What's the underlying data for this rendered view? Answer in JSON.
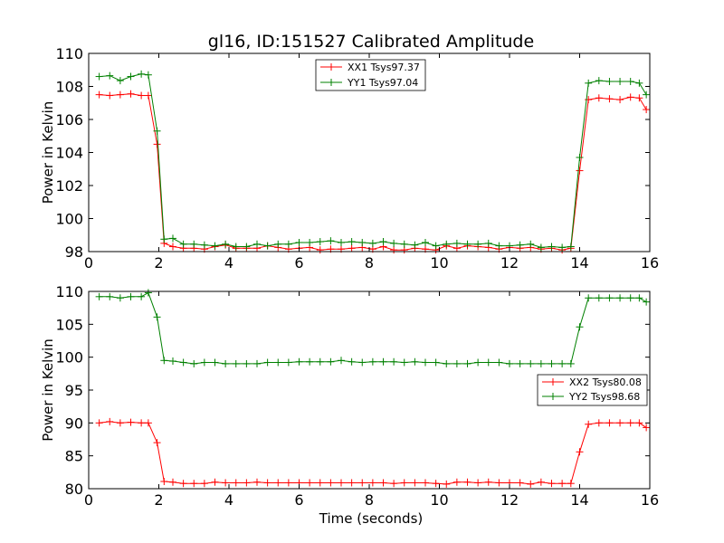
{
  "chart_data": {
    "type": "line",
    "title": "gl16, ID:151527 Calibrated Amplitude",
    "xlabel": "Time (seconds)",
    "colors": {
      "red": "#ff0000",
      "green": "#008000"
    },
    "panels": [
      {
        "ylabel": "Power in Kelvin",
        "xlim": [
          0,
          16
        ],
        "ylim": [
          98,
          110
        ],
        "xticks": [
          0,
          2,
          4,
          6,
          8,
          10,
          12,
          14,
          16
        ],
        "yticks": [
          98,
          100,
          102,
          104,
          106,
          108,
          110
        ],
        "legend_position": "top-center",
        "series": [
          {
            "name": "XX1 Tsys97.37",
            "color": "red",
            "x": [
              0.3,
              0.6,
              0.9,
              1.2,
              1.5,
              1.7,
              1.95,
              2.15,
              2.4,
              2.7,
              3.0,
              3.3,
              3.6,
              3.9,
              4.2,
              4.5,
              4.8,
              5.1,
              5.4,
              5.7,
              6.0,
              6.3,
              6.6,
              6.9,
              7.2,
              7.5,
              7.8,
              8.1,
              8.4,
              8.7,
              9.0,
              9.3,
              9.6,
              9.9,
              10.2,
              10.5,
              10.8,
              11.1,
              11.4,
              11.7,
              12.0,
              12.3,
              12.6,
              12.9,
              13.2,
              13.5,
              13.75,
              14.0,
              14.25,
              14.55,
              14.85,
              15.15,
              15.45,
              15.7,
              15.9
            ],
            "y": [
              107.5,
              107.45,
              107.5,
              107.55,
              107.45,
              107.45,
              104.5,
              98.5,
              98.3,
              98.2,
              98.2,
              98.15,
              98.3,
              98.4,
              98.2,
              98.2,
              98.2,
              98.35,
              98.25,
              98.15,
              98.2,
              98.25,
              98.1,
              98.15,
              98.15,
              98.2,
              98.25,
              98.15,
              98.3,
              98.1,
              98.1,
              98.2,
              98.15,
              98.1,
              98.35,
              98.2,
              98.35,
              98.3,
              98.25,
              98.15,
              98.25,
              98.2,
              98.25,
              98.15,
              98.2,
              98.1,
              98.2,
              102.9,
              107.2,
              107.3,
              107.25,
              107.2,
              107.35,
              107.3,
              106.6
            ]
          },
          {
            "name": "YY1 Tsys97.04",
            "color": "green",
            "x": [
              0.3,
              0.6,
              0.9,
              1.2,
              1.5,
              1.7,
              1.95,
              2.15,
              2.4,
              2.7,
              3.0,
              3.3,
              3.6,
              3.9,
              4.2,
              4.5,
              4.8,
              5.1,
              5.4,
              5.7,
              6.0,
              6.3,
              6.6,
              6.9,
              7.2,
              7.5,
              7.8,
              8.1,
              8.4,
              8.7,
              9.0,
              9.3,
              9.6,
              9.9,
              10.2,
              10.5,
              10.8,
              11.1,
              11.4,
              11.7,
              12.0,
              12.3,
              12.6,
              12.9,
              13.2,
              13.5,
              13.75,
              14.0,
              14.25,
              14.55,
              14.85,
              15.15,
              15.45,
              15.7,
              15.9
            ],
            "y": [
              108.6,
              108.65,
              108.35,
              108.6,
              108.75,
              108.7,
              105.3,
              98.75,
              98.8,
              98.45,
              98.45,
              98.4,
              98.35,
              98.45,
              98.3,
              98.3,
              98.45,
              98.35,
              98.45,
              98.45,
              98.55,
              98.55,
              98.6,
              98.65,
              98.55,
              98.6,
              98.55,
              98.5,
              98.6,
              98.5,
              98.45,
              98.4,
              98.55,
              98.35,
              98.45,
              98.5,
              98.45,
              98.45,
              98.5,
              98.35,
              98.35,
              98.4,
              98.45,
              98.25,
              98.3,
              98.25,
              98.3,
              103.7,
              108.2,
              108.35,
              108.3,
              108.3,
              108.3,
              108.2,
              107.5
            ]
          }
        ]
      },
      {
        "ylabel": "Power in Kelvin",
        "xlim": [
          0,
          16
        ],
        "ylim": [
          80,
          110
        ],
        "xticks": [
          0,
          2,
          4,
          6,
          8,
          10,
          12,
          14,
          16
        ],
        "yticks": [
          80,
          85,
          90,
          95,
          100,
          105,
          110
        ],
        "legend_position": "center-right",
        "series": [
          {
            "name": "XX2 Tsys80.08",
            "color": "red",
            "x": [
              0.3,
              0.6,
              0.9,
              1.2,
              1.5,
              1.7,
              1.95,
              2.15,
              2.4,
              2.7,
              3.0,
              3.3,
              3.6,
              3.9,
              4.2,
              4.5,
              4.8,
              5.1,
              5.4,
              5.7,
              6.0,
              6.3,
              6.6,
              6.9,
              7.2,
              7.5,
              7.8,
              8.1,
              8.4,
              8.7,
              9.0,
              9.3,
              9.6,
              9.9,
              10.2,
              10.5,
              10.8,
              11.1,
              11.4,
              11.7,
              12.0,
              12.3,
              12.6,
              12.9,
              13.2,
              13.5,
              13.75,
              14.0,
              14.25,
              14.55,
              14.85,
              15.15,
              15.45,
              15.7,
              15.9
            ],
            "y": [
              90.0,
              90.2,
              90.0,
              90.1,
              90.0,
              90.0,
              87.0,
              81.1,
              81.0,
              80.8,
              80.8,
              80.8,
              81.0,
              80.9,
              80.9,
              80.9,
              81.0,
              80.9,
              80.9,
              80.9,
              80.9,
              80.9,
              80.9,
              80.9,
              80.9,
              80.9,
              80.9,
              80.9,
              80.9,
              80.8,
              80.9,
              80.9,
              80.9,
              80.8,
              80.7,
              81.0,
              81.0,
              80.9,
              81.0,
              80.9,
              80.9,
              80.9,
              80.7,
              81.0,
              80.8,
              80.8,
              80.8,
              85.6,
              89.8,
              90.0,
              90.0,
              90.0,
              90.0,
              90.0,
              89.3
            ]
          },
          {
            "name": "YY2 Tsys98.68",
            "color": "green",
            "x": [
              0.3,
              0.6,
              0.9,
              1.2,
              1.5,
              1.7,
              1.95,
              2.15,
              2.4,
              2.7,
              3.0,
              3.3,
              3.6,
              3.9,
              4.2,
              4.5,
              4.8,
              5.1,
              5.4,
              5.7,
              6.0,
              6.3,
              6.6,
              6.9,
              7.2,
              7.5,
              7.8,
              8.1,
              8.4,
              8.7,
              9.0,
              9.3,
              9.6,
              9.9,
              10.2,
              10.5,
              10.8,
              11.1,
              11.4,
              11.7,
              12.0,
              12.3,
              12.6,
              12.9,
              13.2,
              13.5,
              13.75,
              14.0,
              14.25,
              14.55,
              14.85,
              15.15,
              15.45,
              15.7,
              15.9
            ],
            "y": [
              109.2,
              109.2,
              109.0,
              109.2,
              109.2,
              109.8,
              106.1,
              99.5,
              99.4,
              99.2,
              99.0,
              99.2,
              99.2,
              99.0,
              99.0,
              99.0,
              99.0,
              99.2,
              99.2,
              99.2,
              99.3,
              99.3,
              99.3,
              99.3,
              99.5,
              99.3,
              99.2,
              99.3,
              99.3,
              99.3,
              99.2,
              99.3,
              99.2,
              99.2,
              99.0,
              99.0,
              99.0,
              99.2,
              99.2,
              99.2,
              99.0,
              99.0,
              99.0,
              99.0,
              99.0,
              99.0,
              99.0,
              104.6,
              109.0,
              109.0,
              109.0,
              109.0,
              109.0,
              109.0,
              108.4
            ]
          }
        ]
      }
    ]
  }
}
